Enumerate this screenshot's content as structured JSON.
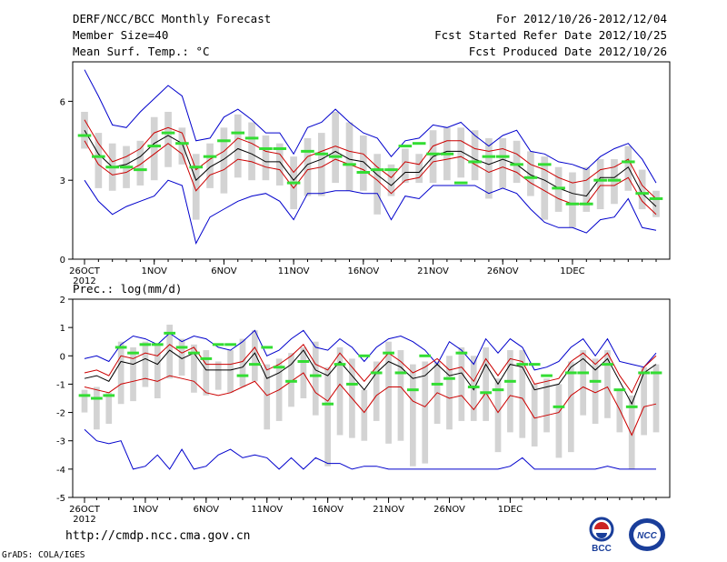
{
  "header": {
    "left1": "DERF/NCC/BCC Monthly Forecast",
    "left2": "Member Size=40",
    "left3": "Mean Surf. Temp.: °C",
    "right1": "For 2012/10/26-2012/12/04",
    "right2": "Fcst Started Refer Date 2012/10/25",
    "right3": "Fcst Produced Date 2012/10/26"
  },
  "panel2_label": "Prec.: log(mm/d)",
  "footer": {
    "url": "http://cmdp.ncc.cma.gov.cn",
    "credit": "GrADS: COLA/IGES",
    "logo1_text": "BCC",
    "logo2_text": "NCC"
  },
  "colors": {
    "max_min": "#0000cc",
    "spread": "#cc0000",
    "mean": "#000000",
    "box": "#d3d3d3",
    "obs": "#33dd33"
  },
  "chart_data": [
    {
      "type": "line",
      "title": "Mean Surf. Temp.: °C",
      "x_labels": [
        "26OCT",
        "1NOV",
        "6NOV",
        "11NOV",
        "16NOV",
        "21NOV",
        "26NOV",
        "1DEC"
      ],
      "x_label_index": [
        0,
        5,
        10,
        15,
        20,
        25,
        30,
        35
      ],
      "year_label": "2012",
      "ylim": [
        0,
        7.5
      ],
      "yticks": [
        0,
        3,
        6
      ],
      "series": [
        {
          "name": "max",
          "values": [
            7.2,
            6.2,
            5.1,
            5.0,
            5.6,
            6.1,
            6.6,
            6.2,
            4.5,
            4.6,
            5.4,
            5.7,
            5.3,
            4.8,
            4.8,
            4.0,
            5.0,
            5.2,
            5.7,
            5.2,
            4.8,
            4.6,
            3.9,
            4.5,
            4.6,
            5.1,
            5.0,
            5.2,
            4.7,
            4.3,
            4.7,
            4.9,
            4.1,
            4.0,
            3.7,
            3.6,
            3.4,
            3.9,
            4.2,
            4.4,
            3.8,
            2.9
          ]
        },
        {
          "name": "p_high",
          "values": [
            5.3,
            4.4,
            3.7,
            3.9,
            4.2,
            4.8,
            5.0,
            4.8,
            3.4,
            3.8,
            4.1,
            4.6,
            4.4,
            4.1,
            4.0,
            3.3,
            3.9,
            4.1,
            4.3,
            4.1,
            4.0,
            3.5,
            3.1,
            3.7,
            3.6,
            4.3,
            4.5,
            4.5,
            4.2,
            4.1,
            4.2,
            4.0,
            3.6,
            3.4,
            3.1,
            2.9,
            3.0,
            3.4,
            3.5,
            3.8,
            2.8,
            2.3
          ]
        },
        {
          "name": "mean",
          "values": [
            4.9,
            4.0,
            3.5,
            3.6,
            3.9,
            4.4,
            4.7,
            4.4,
            3.0,
            3.5,
            3.8,
            4.2,
            4.0,
            3.7,
            3.7,
            3.0,
            3.6,
            3.8,
            4.1,
            3.8,
            3.7,
            3.2,
            2.8,
            3.3,
            3.3,
            3.9,
            4.1,
            4.1,
            3.8,
            3.6,
            3.8,
            3.6,
            3.2,
            3.0,
            2.7,
            2.5,
            2.4,
            3.1,
            3.1,
            3.5,
            2.5,
            2.0
          ]
        },
        {
          "name": "p_low",
          "values": [
            4.5,
            3.6,
            3.2,
            3.3,
            3.6,
            4.0,
            4.4,
            4.0,
            2.6,
            3.2,
            3.4,
            3.8,
            3.7,
            3.5,
            3.4,
            2.7,
            3.4,
            3.5,
            3.8,
            3.6,
            3.4,
            3.0,
            2.5,
            3.0,
            3.1,
            3.7,
            3.8,
            3.9,
            3.6,
            3.3,
            3.5,
            3.3,
            2.9,
            2.6,
            2.3,
            2.1,
            2.1,
            2.8,
            2.8,
            3.1,
            2.2,
            1.7
          ]
        },
        {
          "name": "min",
          "values": [
            3.0,
            2.2,
            1.7,
            2.0,
            2.2,
            2.4,
            3.0,
            2.8,
            0.6,
            1.6,
            1.9,
            2.2,
            2.4,
            2.5,
            2.2,
            1.5,
            2.5,
            2.5,
            2.6,
            2.6,
            2.5,
            2.5,
            1.5,
            2.4,
            2.3,
            2.8,
            2.8,
            2.8,
            2.8,
            2.5,
            2.7,
            2.5,
            1.9,
            1.4,
            1.2,
            1.2,
            1.0,
            1.5,
            1.6,
            2.3,
            1.2,
            1.1
          ]
        },
        {
          "name": "box_low",
          "values": [
            4.2,
            2.7,
            2.6,
            2.7,
            2.8,
            3.0,
            3.5,
            3.6,
            1.5,
            2.7,
            2.5,
            3.1,
            3.0,
            3.0,
            2.8,
            1.9,
            2.4,
            2.4,
            2.9,
            2.6,
            2.6,
            1.7,
            2.4,
            2.9,
            2.9,
            2.9,
            3.0,
            3.1,
            3.0,
            2.3,
            2.7,
            2.9,
            2.4,
            1.5,
            1.8,
            1.2,
            1.8,
            1.9,
            2.1,
            2.6,
            1.9,
            1.6
          ]
        },
        {
          "name": "box_high",
          "values": [
            5.6,
            4.8,
            4.4,
            4.3,
            4.5,
            5.4,
            5.6,
            5.0,
            4.0,
            4.4,
            5.0,
            5.5,
            5.2,
            4.7,
            4.4,
            3.9,
            4.6,
            4.8,
            5.6,
            5.2,
            4.7,
            4.0,
            3.6,
            4.2,
            4.0,
            4.9,
            5.0,
            5.0,
            4.9,
            4.6,
            4.6,
            4.5,
            4.1,
            3.9,
            3.5,
            3.3,
            3.5,
            3.8,
            3.8,
            4.3,
            3.4,
            2.6
          ]
        },
        {
          "name": "observed",
          "values": [
            4.7,
            3.9,
            3.5,
            3.5,
            3.4,
            4.3,
            4.8,
            4.4,
            3.5,
            3.9,
            4.5,
            4.8,
            4.6,
            4.2,
            4.2,
            2.9,
            4.1,
            4.0,
            3.9,
            3.6,
            3.3,
            3.4,
            3.4,
            4.3,
            4.4,
            4.0,
            4.0,
            2.9,
            3.7,
            3.9,
            3.9,
            3.6,
            3.1,
            3.6,
            2.7,
            2.1,
            2.1,
            3.0,
            3.0,
            3.7,
            2.5,
            2.3
          ]
        }
      ]
    },
    {
      "type": "line",
      "title": "Prec.: log(mm/d)",
      "x_labels": [
        "26OCT",
        "1NOV",
        "6NOV",
        "11NOV",
        "16NOV",
        "21NOV",
        "26NOV",
        "1DEC"
      ],
      "x_label_index": [
        0,
        5,
        10,
        15,
        20,
        25,
        30,
        35
      ],
      "year_label": "2012",
      "ylim": [
        -5,
        2
      ],
      "yticks": [
        -5,
        -4,
        -3,
        -2,
        -1,
        0,
        1,
        2
      ],
      "series": [
        {
          "name": "max",
          "values": [
            -0.1,
            0.0,
            -0.2,
            0.4,
            0.7,
            0.6,
            0.4,
            0.8,
            0.5,
            0.7,
            0.6,
            0.3,
            0.2,
            0.5,
            0.9,
            0.0,
            0.2,
            0.6,
            0.9,
            0.3,
            0.2,
            0.6,
            0.3,
            -0.2,
            0.3,
            0.6,
            0.7,
            0.5,
            0.2,
            -0.3,
            0.5,
            0.2,
            -0.3,
            0.6,
            0.1,
            0.6,
            0.3,
            -0.5,
            -0.4,
            -0.2,
            0.3,
            0.6,
            0.0,
            0.6,
            -0.2,
            -0.3,
            -0.4,
            0.1
          ]
        },
        {
          "name": "p_high",
          "values": [
            -0.6,
            -0.5,
            -0.7,
            0.0,
            -0.1,
            0.1,
            0.0,
            0.4,
            0.1,
            0.3,
            -0.3,
            -0.3,
            -0.3,
            -0.2,
            0.3,
            -0.5,
            -0.3,
            0.0,
            0.4,
            -0.3,
            -0.5,
            0.1,
            -0.4,
            -0.9,
            -0.4,
            0.1,
            -0.2,
            -0.6,
            -0.4,
            -0.1,
            -0.5,
            -0.4,
            -0.9,
            -0.1,
            -0.7,
            -0.1,
            -0.2,
            -1.0,
            -0.9,
            -0.8,
            -0.2,
            0.1,
            -0.3,
            0.1,
            -0.7,
            -1.3,
            -0.4,
            0.0
          ]
        },
        {
          "name": "mean",
          "values": [
            -0.8,
            -0.7,
            -0.9,
            -0.2,
            -0.3,
            -0.1,
            -0.3,
            0.2,
            -0.1,
            0.1,
            -0.5,
            -0.5,
            -0.5,
            -0.4,
            0.1,
            -0.8,
            -0.6,
            -0.3,
            0.2,
            -0.5,
            -0.7,
            -0.2,
            -0.7,
            -1.2,
            -0.6,
            -0.2,
            -0.4,
            -0.8,
            -0.7,
            -0.3,
            -0.7,
            -0.6,
            -1.2,
            -0.3,
            -1.0,
            -0.3,
            -0.4,
            -1.2,
            -1.1,
            -1.0,
            -0.4,
            -0.1,
            -0.5,
            -0.1,
            -0.9,
            -1.7,
            -0.6,
            -0.3
          ]
        },
        {
          "name": "p_low",
          "values": [
            -1.1,
            -1.2,
            -1.3,
            -1.0,
            -0.9,
            -0.8,
            -0.9,
            -0.7,
            -0.8,
            -0.9,
            -1.3,
            -1.4,
            -1.3,
            -1.1,
            -0.9,
            -1.4,
            -1.2,
            -0.9,
            -0.6,
            -1.3,
            -1.6,
            -1.0,
            -1.5,
            -2.0,
            -1.4,
            -1.1,
            -1.1,
            -1.6,
            -1.8,
            -1.3,
            -1.5,
            -1.4,
            -1.9,
            -1.3,
            -2.0,
            -1.4,
            -1.5,
            -2.2,
            -2.1,
            -2.0,
            -1.4,
            -1.1,
            -1.3,
            -1.1,
            -1.9,
            -2.8,
            -1.8,
            -1.7
          ]
        },
        {
          "name": "min",
          "values": [
            -2.6,
            -3.0,
            -3.1,
            -3.0,
            -4.0,
            -3.9,
            -3.5,
            -4.0,
            -3.3,
            -4.0,
            -3.9,
            -3.5,
            -3.3,
            -3.6,
            -3.5,
            -3.6,
            -4.0,
            -3.6,
            -4.0,
            -3.6,
            -3.8,
            -3.8,
            -4.0,
            -3.9,
            -3.9,
            -4.0,
            -4.0,
            -4.0,
            -4.0,
            -4.0,
            -4.0,
            -4.0,
            -4.0,
            -4.0,
            -4.0,
            -3.9,
            -3.6,
            -4.0,
            -4.0,
            -4.0,
            -4.0,
            -4.0,
            -4.0,
            -3.9,
            -4.0,
            -4.0,
            -4.0,
            -4.0
          ]
        },
        {
          "name": "box_low",
          "values": [
            -2.0,
            -2.6,
            -2.4,
            -1.7,
            -1.6,
            -1.1,
            -1.5,
            -0.8,
            -0.7,
            -1.3,
            -1.4,
            -1.2,
            -1.3,
            -1.1,
            -0.9,
            -2.6,
            -2.3,
            -1.8,
            -1.5,
            -2.1,
            -3.9,
            -2.8,
            -2.9,
            -3.0,
            -2.3,
            -3.1,
            -3.0,
            -3.9,
            -3.8,
            -2.4,
            -2.6,
            -2.3,
            -2.3,
            -2.3,
            -3.4,
            -2.7,
            -2.9,
            -3.2,
            -2.7,
            -3.6,
            -3.4,
            -2.1,
            -2.4,
            -2.2,
            -2.7,
            -4.0,
            -2.8,
            -2.7
          ]
        },
        {
          "name": "box_high",
          "values": [
            -1.2,
            -1.1,
            -1.3,
            0.5,
            0.3,
            0.5,
            0.4,
            1.1,
            0.6,
            0.4,
            0.2,
            -0.2,
            0.2,
            0.6,
            0.9,
            -0.3,
            -0.1,
            0.1,
            0.3,
            0.5,
            -0.4,
            0.3,
            -0.1,
            -1.2,
            -0.2,
            0.5,
            0.2,
            -0.3,
            -0.2,
            -0.2,
            0.0,
            0.3,
            0.0,
            0.3,
            -0.8,
            0.2,
            0.2,
            -1.0,
            -0.8,
            -1.0,
            -0.2,
            0.2,
            -0.1,
            0.2,
            -1.2,
            -1.4,
            -0.4,
            -0.3
          ]
        },
        {
          "name": "observed",
          "values": [
            -1.4,
            -1.5,
            -1.4,
            0.3,
            0.1,
            0.4,
            0.4,
            0.8,
            0.3,
            0.1,
            -0.1,
            0.4,
            0.4,
            -0.7,
            -0.3,
            0.3,
            -0.4,
            -0.9,
            -0.2,
            -0.7,
            -1.7,
            -0.3,
            -1.0,
            0.0,
            -0.6,
            0.1,
            -0.6,
            -1.2,
            0.0,
            -1.0,
            -0.8,
            0.1,
            -1.1,
            -1.3,
            -1.2,
            -0.9,
            -0.3,
            -0.3,
            -0.7,
            -1.8,
            -0.6,
            -0.6,
            -0.9,
            -0.3,
            -1.2,
            -1.8,
            -0.6,
            -0.6
          ]
        }
      ]
    }
  ]
}
